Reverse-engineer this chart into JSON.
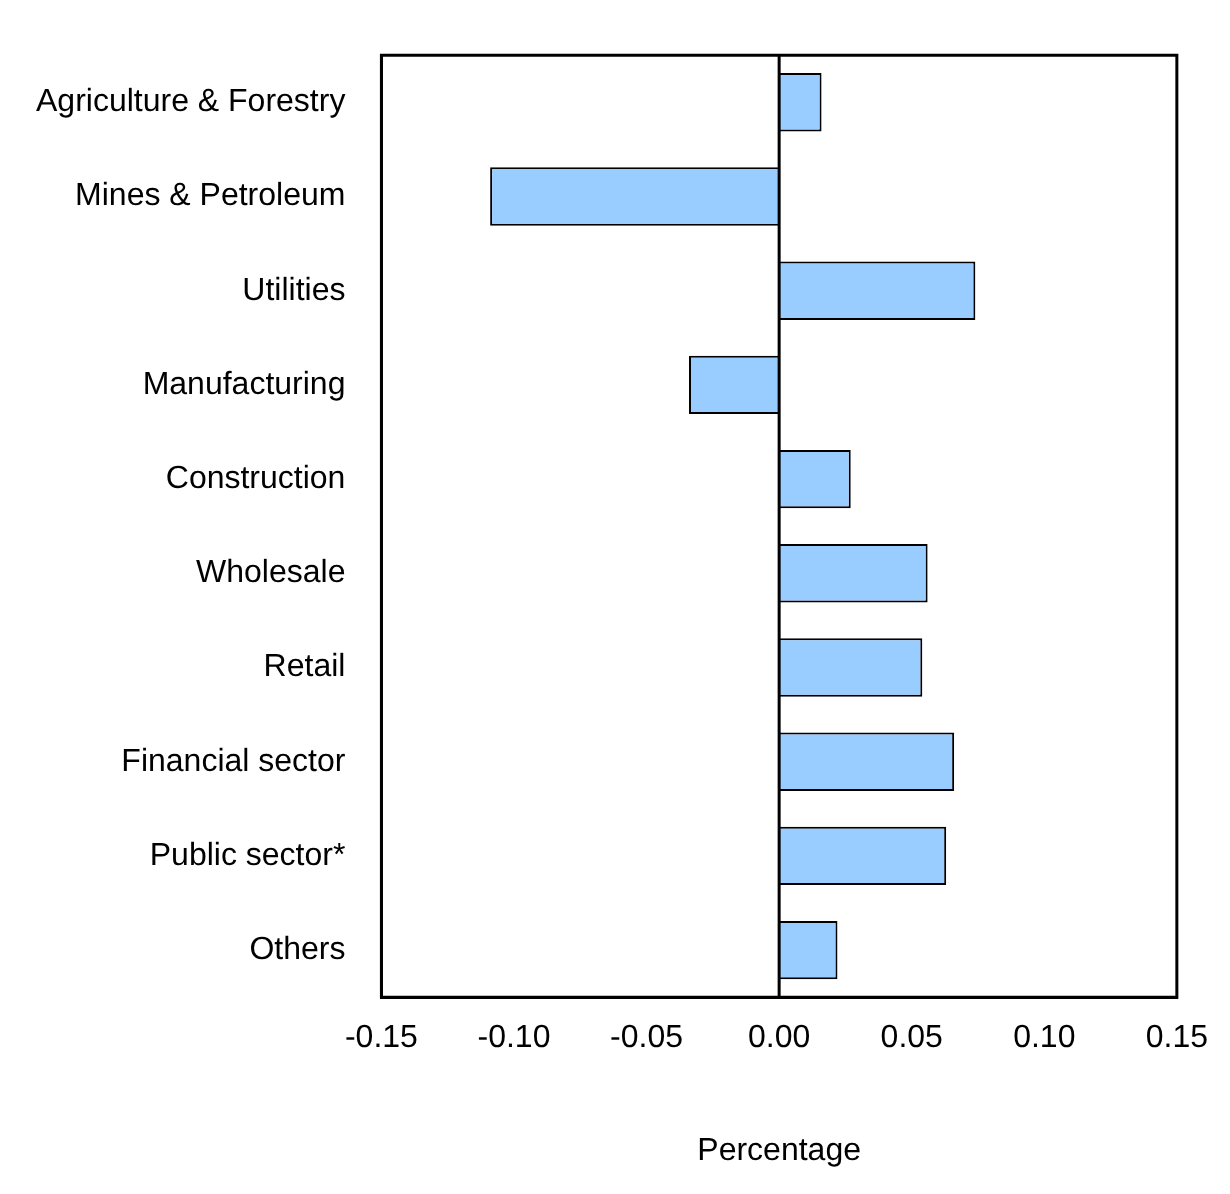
{
  "chart_data": {
    "type": "bar",
    "orientation": "horizontal",
    "xlabel": "Percentage",
    "categories": [
      "Agriculture & Forestry",
      "Mines & Petroleum",
      "Utilities",
      "Manufacturing",
      "Construction",
      "Wholesale",
      "Retail",
      "Financial sector",
      "Public sector*",
      "Others"
    ],
    "values": [
      0.016,
      -0.109,
      0.074,
      -0.034,
      0.027,
      0.056,
      0.054,
      0.066,
      0.063,
      0.022
    ],
    "color": "#99ccff",
    "xlim": [
      -0.15,
      0.15
    ],
    "xticks": [
      {
        "value": -0.15,
        "label": "-0.15"
      },
      {
        "value": -0.1,
        "label": "-0.10"
      },
      {
        "value": -0.05,
        "label": "-0.05"
      },
      {
        "value": 0,
        "label": "0.00"
      },
      {
        "value": 0.05,
        "label": "0.05"
      },
      {
        "value": 0.1,
        "label": "0.10"
      },
      {
        "value": 0.15,
        "label": "0.15"
      }
    ],
    "ref_lines": [
      {
        "axis": "x",
        "value": 0,
        "color": "#000000"
      }
    ],
    "grid": false,
    "legend": false
  }
}
